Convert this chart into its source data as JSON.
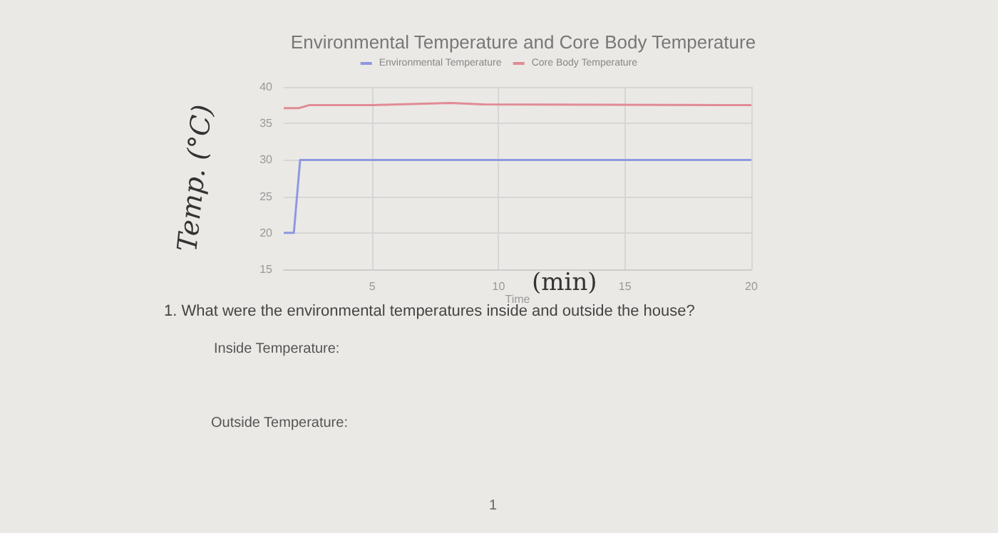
{
  "chart_data": {
    "type": "line",
    "title": "Environmental Temperature and Core Body Temperature",
    "xlabel": "Time",
    "ylabel": "Temp. (°C)",
    "annotations": [
      "(min)",
      "1. What were the environmental temperatures inside and outside the house?",
      "Inside Temperature:",
      "Outside Temperature:",
      "1"
    ],
    "series": [
      {
        "name": "Environmental Temperature",
        "color": "#8f98e0",
        "x": [
          1.5,
          1.9,
          2.15,
          20
        ],
        "values": [
          20,
          20,
          30,
          30
        ]
      },
      {
        "name": "Core Body Temperature",
        "color": "#e08c95",
        "x": [
          1.5,
          2.1,
          2.5,
          5,
          8.1,
          9.4,
          20
        ],
        "values": [
          37.1,
          37.1,
          37.5,
          37.5,
          37.8,
          37.6,
          37.5
        ]
      }
    ],
    "xlim": [
      1.5,
      20
    ],
    "xticks": [
      5,
      10,
      15,
      20
    ],
    "ylim": [
      15,
      40
    ],
    "yticks": [
      15,
      20,
      25,
      30,
      35,
      40
    ],
    "grid": true,
    "legend": "top",
    "marker": "none",
    "line_style": "solid"
  }
}
